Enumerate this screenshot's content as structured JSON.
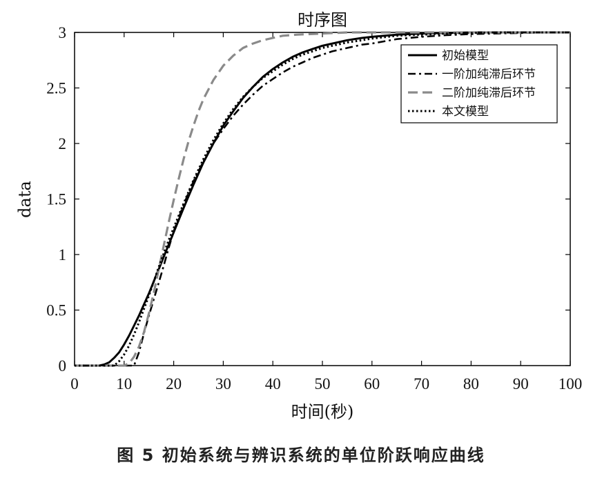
{
  "chart_data": {
    "type": "line",
    "title": "时序图",
    "xlabel": "时间(秒)",
    "ylabel": "data",
    "xlim": [
      0,
      100
    ],
    "ylim": [
      0,
      3
    ],
    "xticks": [
      "0",
      "10",
      "20",
      "30",
      "40",
      "50",
      "60",
      "70",
      "80",
      "90",
      "100"
    ],
    "yticks": [
      "0",
      "0.5",
      "1",
      "1.5",
      "2",
      "2.5",
      "3"
    ],
    "legend_position": "top-right",
    "grid": false,
    "series": [
      {
        "name": "初始模型",
        "style": "solid",
        "color": "#000000",
        "x": [
          0,
          5,
          6,
          7,
          8,
          9,
          10,
          11,
          12,
          13,
          14,
          15,
          16,
          17,
          18,
          19,
          20,
          22,
          24,
          26,
          28,
          30,
          32,
          34,
          36,
          38,
          40,
          42,
          44,
          46,
          48,
          50,
          52,
          55,
          58,
          60,
          65,
          70,
          75,
          80,
          85,
          90,
          95,
          100
        ],
        "y": [
          0,
          0,
          0.01,
          0.03,
          0.07,
          0.12,
          0.19,
          0.27,
          0.36,
          0.45,
          0.55,
          0.65,
          0.76,
          0.87,
          0.98,
          1.09,
          1.2,
          1.42,
          1.63,
          1.83,
          2.0,
          2.16,
          2.29,
          2.41,
          2.51,
          2.6,
          2.67,
          2.73,
          2.78,
          2.82,
          2.85,
          2.88,
          2.9,
          2.93,
          2.95,
          2.96,
          2.98,
          2.99,
          2.995,
          3.0,
          3.0,
          3.0,
          3.0,
          3.0
        ]
      },
      {
        "name": "一阶加纯滞后环节",
        "style": "dashdot",
        "color": "#000000",
        "x": [
          0,
          12,
          13,
          14,
          15,
          16,
          17,
          18,
          19,
          20,
          22,
          24,
          26,
          28,
          30,
          32,
          34,
          36,
          38,
          40,
          42,
          44,
          46,
          48,
          50,
          52,
          55,
          58,
          60,
          65,
          70,
          75,
          80,
          85,
          90,
          95,
          100
        ],
        "y": [
          0,
          0,
          0.12,
          0.29,
          0.45,
          0.6,
          0.75,
          0.9,
          1.06,
          1.21,
          1.45,
          1.66,
          1.84,
          2.0,
          2.13,
          2.25,
          2.35,
          2.44,
          2.52,
          2.58,
          2.64,
          2.69,
          2.73,
          2.77,
          2.8,
          2.83,
          2.86,
          2.89,
          2.9,
          2.94,
          2.96,
          2.975,
          2.985,
          2.99,
          2.995,
          3.0,
          3.0
        ]
      },
      {
        "name": "二阶加纯滞后环节",
        "style": "dashed",
        "color": "#8a8a8a",
        "x": [
          0,
          10,
          11,
          12,
          13,
          14,
          15,
          16,
          17,
          18,
          19,
          20,
          21,
          22,
          23,
          24,
          25,
          26,
          28,
          30,
          32,
          34,
          36,
          38,
          40,
          42,
          45,
          50,
          55,
          60,
          65,
          70,
          80,
          90,
          100
        ],
        "y": [
          0,
          0,
          0.02,
          0.08,
          0.17,
          0.3,
          0.47,
          0.66,
          0.87,
          1.08,
          1.29,
          1.49,
          1.68,
          1.86,
          2.02,
          2.16,
          2.29,
          2.4,
          2.57,
          2.7,
          2.79,
          2.86,
          2.9,
          2.93,
          2.95,
          2.97,
          2.98,
          2.99,
          3.0,
          3.0,
          3.0,
          3.0,
          3.0,
          3.0,
          3.0
        ]
      },
      {
        "name": "本文模型",
        "style": "dotted",
        "color": "#000000",
        "x": [
          0,
          8,
          9,
          10,
          11,
          12,
          13,
          14,
          15,
          16,
          17,
          18,
          19,
          20,
          22,
          24,
          26,
          28,
          30,
          32,
          34,
          36,
          38,
          40,
          42,
          44,
          46,
          48,
          50,
          52,
          55,
          58,
          60,
          65,
          70,
          75,
          80,
          85,
          90,
          95,
          100
        ],
        "y": [
          0,
          0,
          0.04,
          0.1,
          0.18,
          0.28,
          0.39,
          0.51,
          0.63,
          0.76,
          0.89,
          1.01,
          1.13,
          1.24,
          1.46,
          1.67,
          1.86,
          2.03,
          2.18,
          2.31,
          2.42,
          2.51,
          2.59,
          2.65,
          2.71,
          2.76,
          2.8,
          2.83,
          2.86,
          2.88,
          2.91,
          2.93,
          2.945,
          2.97,
          2.98,
          2.99,
          2.995,
          3.0,
          3.0,
          3.0,
          3.0
        ]
      }
    ]
  },
  "caption": "图 5   初始系统与辨识系统的单位阶跃响应曲线"
}
